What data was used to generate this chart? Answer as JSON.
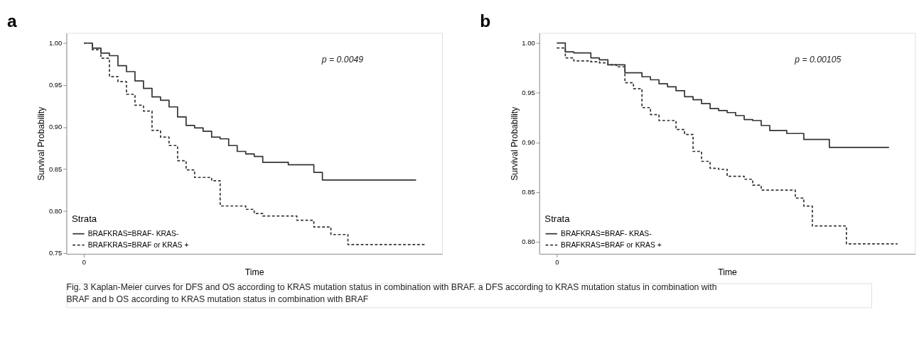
{
  "chart_data": [
    {
      "type": "step",
      "title": "a",
      "xlabel": "Time",
      "ylabel": "Survival Probability",
      "legend_title": "Strata",
      "legend": "bottom left",
      "grid": false,
      "categories": [
        "0",
        null,
        null,
        null,
        null,
        null,
        null,
        null,
        null,
        null,
        null,
        null,
        null,
        null,
        null,
        null,
        null,
        null,
        null,
        null,
        null,
        null,
        null,
        null,
        null,
        null,
        null,
        null,
        null,
        null,
        null,
        null,
        null,
        null,
        null,
        null,
        null,
        null,
        null,
        null,
        null
      ],
      "ylim": [
        0.749,
        1.012
      ],
      "yticks": [
        {
          "value": 0.75,
          "label": "0.75"
        },
        {
          "value": 0.8,
          "label": "0.80"
        },
        {
          "value": 0.85,
          "label": "0.85"
        },
        {
          "value": 0.9,
          "label": "0.90"
        },
        {
          "value": 0.95,
          "label": "0.95"
        },
        {
          "value": 1.0,
          "label": "1.00"
        }
      ],
      "series": [
        {
          "name": "BRAFKRAS=BRAF- KRAS-",
          "color": "#333333",
          "line_style": "solid",
          "values": [
            1.0,
            0.994,
            0.988,
            0.985,
            0.973,
            0.966,
            0.955,
            0.946,
            0.936,
            0.932,
            0.924,
            0.912,
            0.902,
            0.899,
            0.895,
            0.888,
            0.886,
            0.878,
            0.871,
            0.868,
            0.865,
            0.858,
            0.858,
            0.858,
            0.855,
            0.855,
            0.855,
            0.846,
            0.837,
            0.837,
            0.837,
            0.837,
            0.837,
            0.837,
            0.837,
            0.837,
            0.837,
            0.837,
            0.837,
            0.837,
            null
          ]
        },
        {
          "name": "BRAFKRAS=BRAF or KRAS +",
          "color": "#333333",
          "line_style": "dashed",
          "values": [
            1.0,
            0.992,
            0.982,
            0.96,
            0.954,
            0.939,
            0.926,
            0.919,
            0.896,
            0.888,
            0.878,
            0.86,
            0.849,
            0.84,
            0.84,
            0.836,
            0.806,
            0.806,
            0.806,
            0.802,
            0.797,
            0.794,
            0.794,
            0.794,
            0.794,
            0.789,
            0.789,
            0.781,
            0.781,
            0.772,
            0.772,
            0.76,
            0.76,
            0.76,
            0.76,
            0.76,
            0.76,
            0.76,
            0.76,
            0.76,
            0.76
          ]
        }
      ],
      "annotations": [
        "p = 0.0049"
      ]
    },
    {
      "type": "step",
      "title": "b",
      "xlabel": "Time",
      "ylabel": "Survival Probability",
      "legend_title": "Strata",
      "legend": "bottom left",
      "grid": false,
      "categories": [
        "0",
        null,
        null,
        null,
        null,
        null,
        null,
        null,
        null,
        null,
        null,
        null,
        null,
        null,
        null,
        null,
        null,
        null,
        null,
        null,
        null,
        null,
        null,
        null,
        null,
        null,
        null,
        null,
        null,
        null,
        null,
        null,
        null,
        null,
        null,
        null,
        null,
        null,
        null,
        null,
        null
      ],
      "ylim": [
        0.788,
        1.01
      ],
      "yticks": [
        {
          "value": 0.8,
          "label": "0.80"
        },
        {
          "value": 0.85,
          "label": "0.85"
        },
        {
          "value": 0.9,
          "label": "0.90"
        },
        {
          "value": 0.95,
          "label": "0.95"
        },
        {
          "value": 1.0,
          "label": "1.00"
        }
      ],
      "series": [
        {
          "name": "BRAFKRAS=BRAF- KRAS-",
          "color": "#333333",
          "line_style": "solid",
          "values": [
            1.0,
            0.991,
            0.99,
            0.99,
            0.985,
            0.983,
            0.978,
            0.978,
            0.97,
            0.97,
            0.966,
            0.963,
            0.959,
            0.956,
            0.952,
            0.946,
            0.943,
            0.939,
            0.934,
            0.932,
            0.93,
            0.927,
            0.923,
            0.922,
            0.917,
            0.912,
            0.912,
            0.909,
            0.909,
            0.903,
            0.903,
            0.903,
            0.895,
            0.895,
            0.895,
            0.895,
            0.895,
            0.895,
            0.895,
            0.895,
            null
          ]
        },
        {
          "name": "BRAFKRAS=BRAF or KRAS +",
          "color": "#333333",
          "line_style": "dashed",
          "values": [
            0.995,
            0.985,
            0.982,
            0.982,
            0.981,
            0.98,
            0.978,
            0.976,
            0.96,
            0.954,
            0.935,
            0.928,
            0.922,
            0.922,
            0.913,
            0.908,
            0.891,
            0.881,
            0.874,
            0.873,
            0.866,
            0.866,
            0.863,
            0.857,
            0.852,
            0.852,
            0.852,
            0.852,
            0.844,
            0.836,
            0.816,
            0.816,
            0.816,
            0.816,
            0.798,
            0.798,
            0.798,
            0.798,
            0.798,
            0.798,
            0.798
          ]
        }
      ],
      "annotations": [
        "p = 0.00105",
        "Fig. 3 Kaplan-Meier curves for DFS and OS according to KRAS mutation status in combination with BRAF. a DFS according to KRAS mutation status in combination with BRAF and b OS according to KRAS mutation status in combination with BRAF"
      ]
    }
  ]
}
